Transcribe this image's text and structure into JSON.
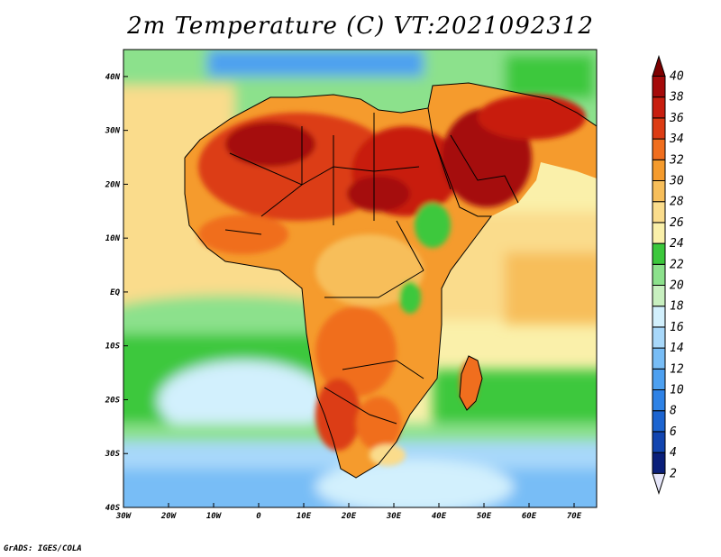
{
  "title": "2m Temperature (C) VT:2021092312",
  "credit": "GrADS: IGES/COLA",
  "map": {
    "lon_range": [
      -30,
      75
    ],
    "lat_range": [
      -40,
      45
    ],
    "lon_ticks": [
      "30W",
      "20W",
      "10W",
      "0",
      "10E",
      "20E",
      "30E",
      "40E",
      "50E",
      "60E",
      "70E"
    ],
    "lat_ticks": [
      "40S",
      "30S",
      "20S",
      "10S",
      "EQ",
      "10N",
      "20N",
      "30N",
      "40N"
    ]
  },
  "colorbar": {
    "levels": [
      "2",
      "4",
      "6",
      "8",
      "10",
      "12",
      "14",
      "16",
      "18",
      "20",
      "22",
      "24",
      "26",
      "28",
      "30",
      "32",
      "34",
      "36",
      "38",
      "40"
    ],
    "colors": [
      "#e6e6fa",
      "#0a1f7a",
      "#1245b0",
      "#1c64d0",
      "#2e82e6",
      "#4da0f0",
      "#78bdf6",
      "#a8d8fa",
      "#d2f0fd",
      "#c8f0c0",
      "#8ce18c",
      "#3cc83c",
      "#faf0aa",
      "#fadc8c",
      "#f7be5a",
      "#f59b2d",
      "#f06e1e",
      "#dc3c14",
      "#c81e0f",
      "#a50a0a",
      "#7d0000"
    ]
  },
  "chart_data": {
    "type": "heatmap",
    "title": "2m Temperature (C) VT:2021092312",
    "units": "C",
    "xlabel": "",
    "ylabel": "",
    "x_range": [
      -30,
      75
    ],
    "y_range": [
      -40,
      45
    ]
  }
}
